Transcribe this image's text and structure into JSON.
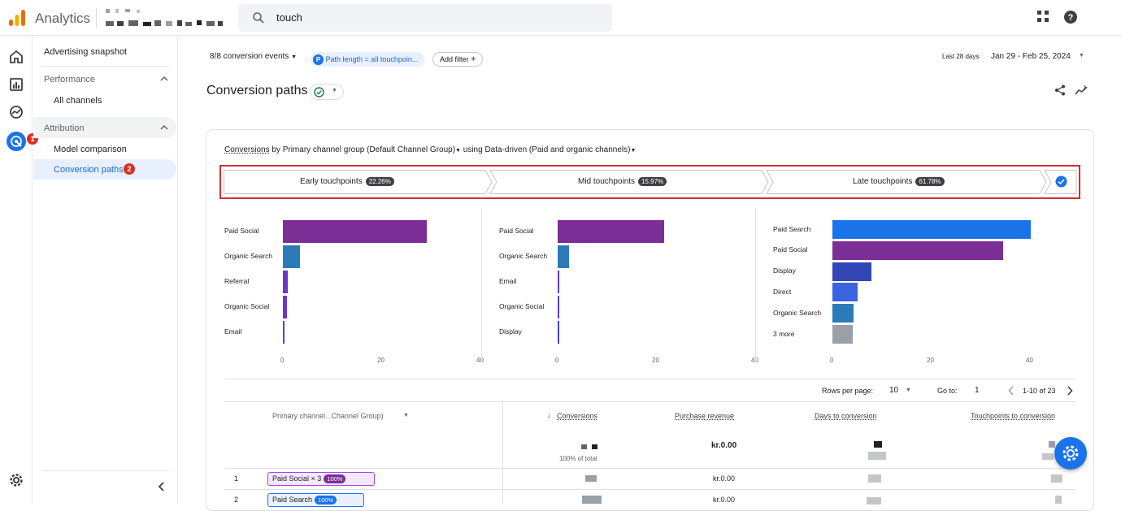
{
  "app": {
    "name": "Analytics",
    "search_value": "touch"
  },
  "nav": {
    "advertising_snapshot": "Advertising snapshot",
    "performance": "Performance",
    "all_channels": "All channels",
    "attribution": "Attribution",
    "model_comparison": "Model comparison",
    "conversion_paths": "Conversion paths",
    "badge1": "1",
    "badge2": "2"
  },
  "filters": {
    "conversion_events": "8/8 conversion events",
    "path_chip_letter": "P",
    "path_chip": "Path length = all touchpoin...",
    "add_filter": "Add filter"
  },
  "date": {
    "range_label": "Last 28 days",
    "range": "Jan 29 - Feb 25, 2024"
  },
  "page": {
    "title": "Conversion paths"
  },
  "card": {
    "metric": "Conversions",
    "by": "by Primary channel group (Default Channel Group)",
    "using": "using Data-driven (Paid and organic channels)"
  },
  "touchpoints": [
    {
      "label": "Early touchpoints",
      "pct": "22.26%"
    },
    {
      "label": "Mid touchpoints",
      "pct": "15.97%"
    },
    {
      "label": "Late touchpoints",
      "pct": "61.78%"
    }
  ],
  "chart_data": [
    {
      "type": "bar",
      "title": "Early touchpoints",
      "categories": [
        "Paid Social",
        "Organic Search",
        "Referral",
        "Organic Social",
        "Email"
      ],
      "values": [
        29,
        3.5,
        1,
        0.8,
        0.3
      ],
      "xlim": [
        0,
        40
      ],
      "ticks": [
        "0",
        "20",
        "40"
      ],
      "colors": [
        "#7b2e96",
        "#2b7bb9",
        "#6a35c9",
        "#6a35c9",
        "#5b3fd0"
      ]
    },
    {
      "type": "bar",
      "title": "Mid touchpoints",
      "categories": [
        "Paid Social",
        "Organic Search",
        "Email",
        "Organic Social",
        "Display"
      ],
      "values": [
        21.5,
        2.3,
        0.3,
        0.2,
        0.2
      ],
      "xlim": [
        0,
        40
      ],
      "ticks": [
        "0",
        "20",
        "40"
      ],
      "colors": [
        "#7b2e96",
        "#2b7bb9",
        "#5b3fd0",
        "#5b3fd0",
        "#3d45c2"
      ]
    },
    {
      "type": "bar",
      "title": "Late touchpoints",
      "categories": [
        "Paid Search",
        "Paid Social",
        "Display",
        "Direct",
        "Organic Search",
        "3 more"
      ],
      "values": [
        40,
        34.5,
        7.8,
        5,
        4.3,
        4.1
      ],
      "xlim": [
        0,
        40
      ],
      "ticks": [
        "0",
        "20",
        "40"
      ],
      "colors": [
        "#1a73e8",
        "#7b2e96",
        "#3346b5",
        "#3b63e0",
        "#2b7bb9",
        "#9aa0a6"
      ]
    }
  ],
  "pager": {
    "rows_label": "Rows per page:",
    "rows": "10",
    "goto_label": "Go to:",
    "goto": "1",
    "range": "1-10 of 23"
  },
  "table": {
    "dim_header": "Primary channel...Channel Group)",
    "headers": [
      "Conversions",
      "Purchase revenue",
      "Days to conversion",
      "Touchpoints to conversion"
    ],
    "total_revenue": "kr.0.00",
    "pct_total": "100% of total",
    "rows": [
      {
        "num": "1",
        "path": "Paid Social × 3",
        "pct": "100%",
        "revenue": "kr.0.00"
      },
      {
        "num": "2",
        "path": "Paid Search",
        "pct": "100%",
        "revenue": "kr.0.00"
      }
    ]
  },
  "colors": {
    "accent": "#1a73e8",
    "highlight": "#d32f2f",
    "badge": "#d93025"
  }
}
